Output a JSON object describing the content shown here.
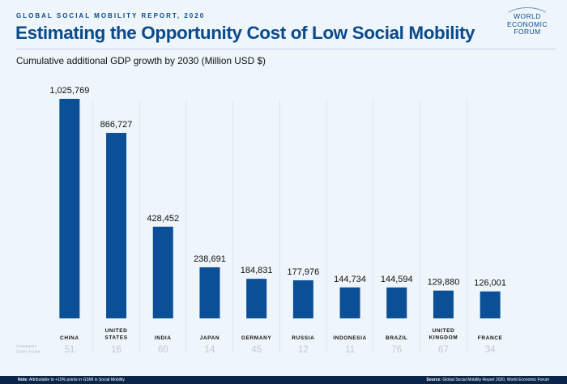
{
  "header": {
    "kicker": "GLOBAL SOCIAL MOBILITY REPORT, 2020",
    "title": "Estimating the Opportunity Cost of Low Social Mobility",
    "logo": [
      "WORLD",
      "ECONOMIC",
      "FORUM"
    ]
  },
  "chart_data": {
    "type": "bar",
    "title": "Cumulative additional GDP growth by 2030 (Million USD $)",
    "categories": [
      "CHINA",
      "UNITED STATES",
      "INDIA",
      "JAPAN",
      "GERMANY",
      "RUSSIA",
      "INDONESIA",
      "BRAZIL",
      "UNITED KINGDOM",
      "FRANCE"
    ],
    "category_lines": [
      [
        "CHINA"
      ],
      [
        "UNITED",
        "STATES"
      ],
      [
        "INDIA"
      ],
      [
        "JAPAN"
      ],
      [
        "GERMANY"
      ],
      [
        "RUSSIA"
      ],
      [
        "INDONESIA"
      ],
      [
        "BRAZIL"
      ],
      [
        "UNITED",
        "KINGDOM"
      ],
      [
        "FRANCE"
      ]
    ],
    "values": [
      1025769,
      866727,
      428452,
      238691,
      184831,
      177976,
      144734,
      144594,
      129880,
      126001
    ],
    "value_labels": [
      "1,025,769",
      "866,727",
      "428,452",
      "238,691",
      "184,831",
      "177,976",
      "144,734",
      "144,594",
      "129,880",
      "126,001"
    ],
    "ranks": [
      51,
      16,
      60,
      14,
      45,
      12,
      11,
      76,
      67,
      34
    ],
    "rank_label": [
      "CURRENT",
      "GSMI RANK"
    ],
    "ylim": [
      0,
      1025769
    ],
    "bar_color": "#0b4f97",
    "rank_color": "#c3c9cf",
    "grid": false
  },
  "footer": {
    "note_label": "Note:",
    "note_text": "Attributable to +10% points in GSMI in Social Mobility",
    "source_label": "Source:",
    "source_text": "Global Social Mobility Report 2020, World Economic Forum"
  }
}
